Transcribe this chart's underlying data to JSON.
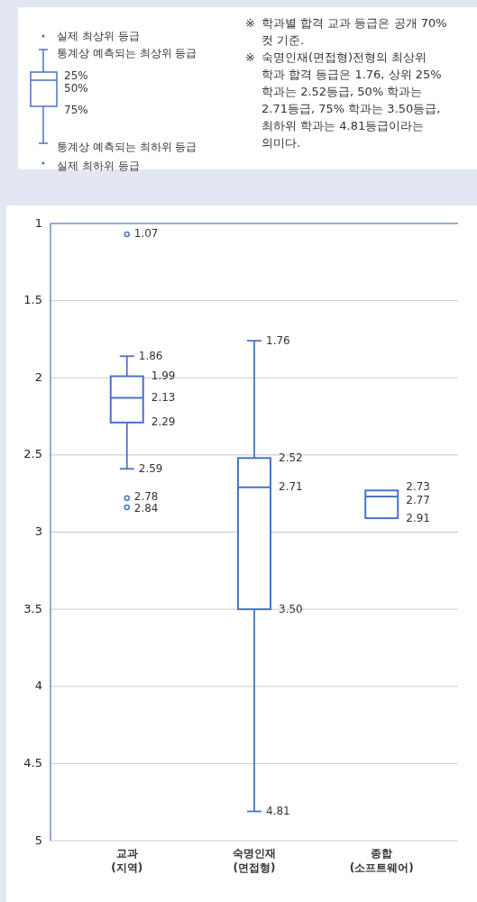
{
  "chart_data": {
    "type": "box",
    "categories": [
      "교과 (지역)",
      "숙명인재 (면접형)",
      "종합 (소프트웨어)"
    ],
    "boxes": [
      {
        "low": 1.86,
        "q1": 1.99,
        "median": 2.13,
        "q3": 2.29,
        "high": 2.59
      },
      {
        "low": 1.76,
        "q1": 2.52,
        "median": 2.71,
        "q3": 3.5,
        "high": 4.81
      },
      {
        "low": 2.73,
        "q1": 2.73,
        "median": 2.77,
        "q3": 2.91,
        "high": 2.91
      }
    ],
    "series": [
      {
        "type": "scatter",
        "color": "#4a74c2",
        "x": [
          "교과 (지역)",
          "교과 (지역)",
          "교과 (지역)"
        ],
        "values": [
          1.07,
          2.78,
          2.84
        ]
      }
    ],
    "color": "#4a74c2",
    "ylim": [
      5,
      1
    ],
    "yticks": [
      1,
      1.5,
      2,
      2.5,
      3,
      3.5,
      4,
      4.5,
      5
    ],
    "grid": "y",
    "annotations": [
      "실제 최상위 등급",
      "통계상 예측되는 최상위 등급",
      "25%",
      "50%",
      "75%",
      "통계상 예측되는 최하위 등급",
      "실제 최하위 등급",
      "※ 학과별 합격 교과 등급은 공개 70% 컷 기준.",
      "※ 숙명인재(면접형)전형의 최상위 학과 합격 등급은 1.76, 상위 25% 학과는 2.52등급, 50% 학과는 2.71등급, 75% 학과는 3.50등급, 최하위 학과는 4.81등급이라는 의미다.",
      {
        "text": "1.07",
        "x": "교과 (지역)",
        "y": 1.07
      },
      {
        "text": "1.86",
        "x": "교과 (지역)",
        "y": 1.86
      },
      {
        "text": "1.99",
        "x": "교과 (지역)",
        "y": 1.99
      },
      {
        "text": "2.13",
        "x": "교과 (지역)",
        "y": 2.13
      },
      {
        "text": "2.29",
        "x": "교과 (지역)",
        "y": 2.29
      },
      {
        "text": "2.59",
        "x": "교과 (지역)",
        "y": 2.59
      },
      {
        "text": "2.78",
        "x": "교과 (지역)",
        "y": 2.78
      },
      {
        "text": "2.84",
        "x": "교과 (지역)",
        "y": 2.84
      },
      {
        "text": "1.76",
        "x": "숙명인재 (면접형)",
        "y": 1.76
      },
      {
        "text": "2.52",
        "x": "숙명인재 (면접형)",
        "y": 2.52
      },
      {
        "text": "2.71",
        "x": "숙명인재 (면접형)",
        "y": 2.71
      },
      {
        "text": "3.50",
        "x": "숙명인재 (면접형)",
        "y": 3.5
      },
      {
        "text": "4.81",
        "x": "숙명인재 (면접형)",
        "y": 4.81
      },
      {
        "text": "2.73",
        "x": "종합 (소프트웨어)",
        "y": 2.73
      },
      {
        "text": "2.77",
        "x": "종합 (소프트웨어)",
        "y": 2.77
      },
      {
        "text": "2.91",
        "x": "종합 (소프트웨어)",
        "y": 2.91
      }
    ]
  }
}
